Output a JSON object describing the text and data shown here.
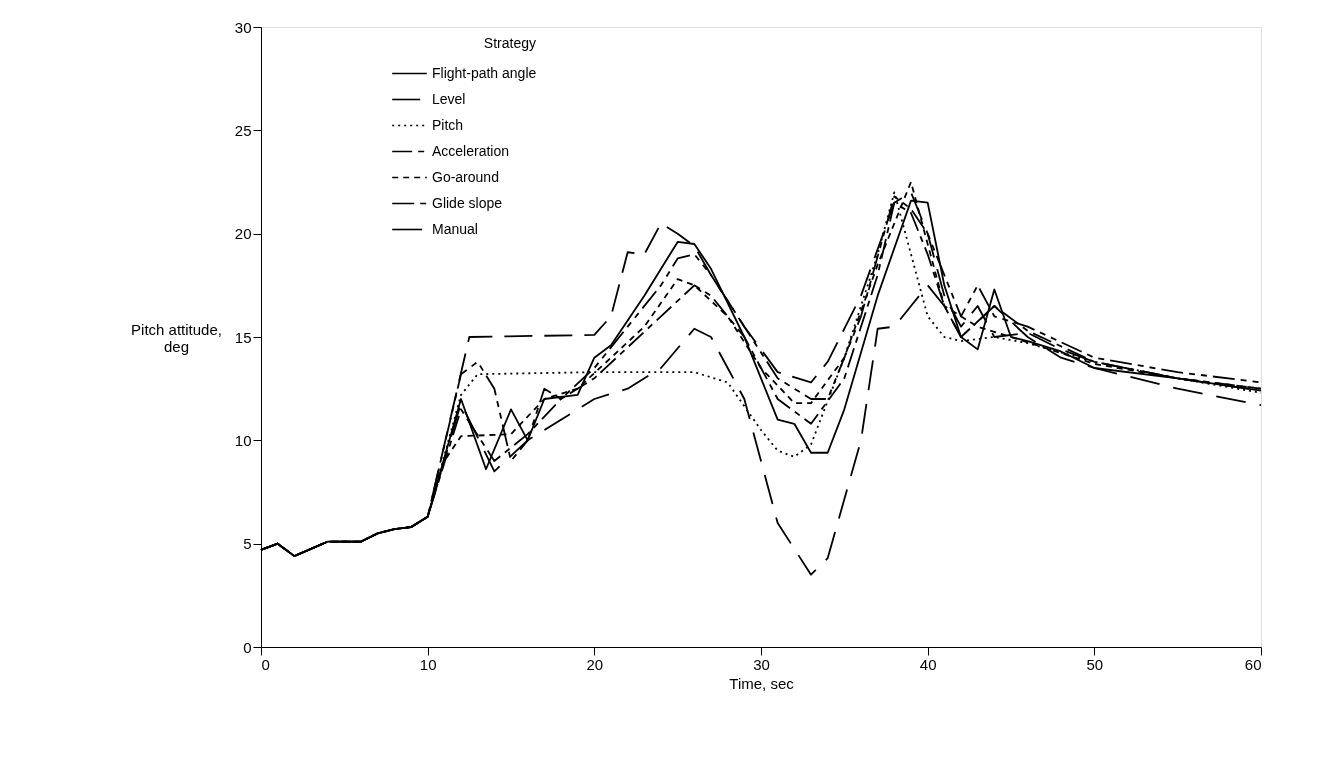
{
  "chart_data": {
    "type": "line",
    "xlabel": "Time, sec",
    "ylabel": "Pitch attitude, deg",
    "legend_title": "Strategy",
    "legend": "top left",
    "grid": false,
    "marker": "none",
    "xlim": [
      0,
      60
    ],
    "xticks": [
      0,
      10,
      20,
      30,
      40,
      50,
      60
    ],
    "ylim": [
      0,
      30
    ],
    "yticks": [
      0,
      5,
      10,
      15,
      20,
      25,
      30
    ],
    "series": [
      {
        "name": "Flight-path angle",
        "color": "#000000",
        "line_style": "solid",
        "x": [
          0,
          1,
          2,
          4,
          6,
          7,
          8,
          9,
          10,
          12,
          13.5,
          15,
          16,
          17,
          19,
          20,
          21,
          23,
          25,
          26,
          27,
          29,
          31,
          32,
          33,
          34,
          35,
          37,
          39,
          40,
          41,
          42,
          43,
          44,
          45,
          46,
          48,
          50,
          55,
          60
        ],
        "values": [
          4.7,
          5.0,
          4.4,
          5.1,
          5.1,
          5.5,
          5.7,
          5.8,
          6.3,
          12,
          8.6,
          11.5,
          10,
          12,
          12.2,
          14,
          14.6,
          17,
          19.6,
          19.5,
          18.3,
          15,
          11,
          10.8,
          9.4,
          9.4,
          11.5,
          17,
          21.6,
          21.5,
          17.5,
          15,
          14.4,
          17.3,
          15,
          14.8,
          14.3,
          13.5,
          13,
          12.4
        ]
      },
      {
        "name": "Level",
        "color": "#000000",
        "line_style": "dashed",
        "x": [
          0,
          1,
          2,
          4,
          6,
          7,
          8,
          9,
          10,
          12.5,
          20,
          21,
          22,
          23,
          24,
          25,
          26,
          27,
          29,
          31,
          33,
          34,
          36,
          38,
          39,
          40,
          41,
          42,
          43,
          44,
          46,
          48,
          50,
          55,
          60
        ],
        "values": [
          4.7,
          5.0,
          4.4,
          5.1,
          5.1,
          5.5,
          5.7,
          5.8,
          6.3,
          15.0,
          15.1,
          16,
          19.1,
          19,
          20.5,
          20,
          19.4,
          18,
          15.5,
          13.3,
          12.8,
          13.8,
          17,
          21.5,
          22,
          20,
          17,
          15.5,
          16.5,
          15,
          15.2,
          14.4,
          13.8,
          13,
          12.4
        ]
      },
      {
        "name": "Pitch",
        "color": "#000000",
        "line_style": "dotted",
        "x": [
          0,
          1,
          2,
          4,
          6,
          7,
          8,
          9,
          10,
          12,
          13,
          20,
          26,
          28,
          30,
          31,
          32,
          33,
          35,
          37,
          38,
          39,
          40,
          41,
          42,
          44,
          46,
          50,
          55,
          60
        ],
        "values": [
          4.7,
          5.0,
          4.4,
          5.1,
          5.1,
          5.5,
          5.7,
          5.8,
          6.3,
          12.2,
          13.2,
          13.3,
          13.3,
          12.8,
          10.5,
          9.5,
          9.2,
          9.8,
          14,
          19,
          22,
          19,
          16,
          15,
          14.8,
          15,
          14.7,
          13.8,
          13.0,
          12.3
        ]
      },
      {
        "name": "Acceleration",
        "color": "#000000",
        "line_style": "dashed",
        "x": [
          0,
          1,
          2,
          4,
          6,
          7,
          8,
          9,
          10,
          12,
          14,
          16,
          18,
          20,
          22,
          24,
          26,
          27,
          29,
          31,
          33,
          35,
          37,
          38,
          39,
          40,
          41,
          42,
          44,
          46,
          50,
          55,
          60
        ],
        "values": [
          4.7,
          5.0,
          4.4,
          5.1,
          5.1,
          5.5,
          5.7,
          5.8,
          6.3,
          11.5,
          9,
          10.3,
          12,
          13,
          14.5,
          16,
          17.5,
          17,
          15,
          12,
          10.8,
          13,
          18,
          21.5,
          21,
          19,
          16.5,
          15,
          16.5,
          15.3,
          13.8,
          13.0,
          12.5
        ]
      },
      {
        "name": "Go-around",
        "color": "#000000",
        "line_style": "dashed",
        "x": [
          0,
          1,
          2,
          4,
          6,
          7,
          8,
          9,
          10,
          11,
          12,
          15,
          17,
          19,
          21,
          23,
          25,
          26,
          28,
          30,
          32,
          33,
          35,
          37,
          39,
          40,
          41,
          43,
          45,
          50,
          55,
          60
        ],
        "values": [
          4.7,
          5.0,
          4.4,
          5.1,
          5.1,
          5.5,
          5.7,
          5.8,
          6.3,
          9,
          10.2,
          10.3,
          12,
          12.5,
          14,
          15.5,
          17.8,
          17.5,
          16,
          13.5,
          11.8,
          11.8,
          14,
          18.5,
          22.5,
          19.5,
          16.5,
          15.5,
          15,
          13.7,
          13,
          12.5
        ]
      },
      {
        "name": "Glide slope",
        "color": "#000000",
        "line_style": "dashed",
        "x": [
          0,
          1,
          2,
          4,
          6,
          7,
          8,
          9,
          10,
          12,
          13,
          14,
          15,
          16,
          17,
          18,
          20,
          22,
          24,
          25,
          26,
          27,
          29,
          31,
          33,
          34,
          36,
          38,
          39,
          40,
          42,
          43,
          44,
          46,
          50,
          55,
          60
        ],
        "values": [
          4.7,
          5.0,
          4.4,
          5.1,
          5.1,
          5.5,
          5.7,
          5.8,
          6.3,
          13.2,
          13.8,
          12.5,
          9,
          10,
          12.5,
          12,
          13.5,
          15.5,
          17.5,
          18.8,
          19,
          18,
          15.5,
          13,
          12,
          12,
          16,
          21.8,
          21.2,
          20,
          16,
          17.5,
          16,
          15.5,
          14,
          13.3,
          12.8
        ]
      },
      {
        "name": "Manual",
        "color": "#000000",
        "line_style": "dashed",
        "x": [
          0,
          1,
          2,
          4,
          6,
          7,
          8,
          9,
          10,
          12,
          14,
          16,
          18,
          20,
          22,
          24,
          26,
          27,
          28,
          29,
          30,
          31,
          33,
          34,
          36,
          37,
          38,
          39,
          40,
          41,
          42,
          44,
          46,
          48,
          50,
          55,
          60
        ],
        "values": [
          4.7,
          5.0,
          4.4,
          5.1,
          5.1,
          5.5,
          5.7,
          5.8,
          6.3,
          11.8,
          8.5,
          10,
          11,
          12,
          12.5,
          13.5,
          15.4,
          15,
          13.5,
          12,
          9,
          6,
          3.5,
          4.3,
          10,
          15.4,
          15.5,
          16.5,
          17.5,
          16.5,
          15,
          16.5,
          15,
          14,
          13.5,
          12.5,
          11.7
        ]
      }
    ]
  }
}
